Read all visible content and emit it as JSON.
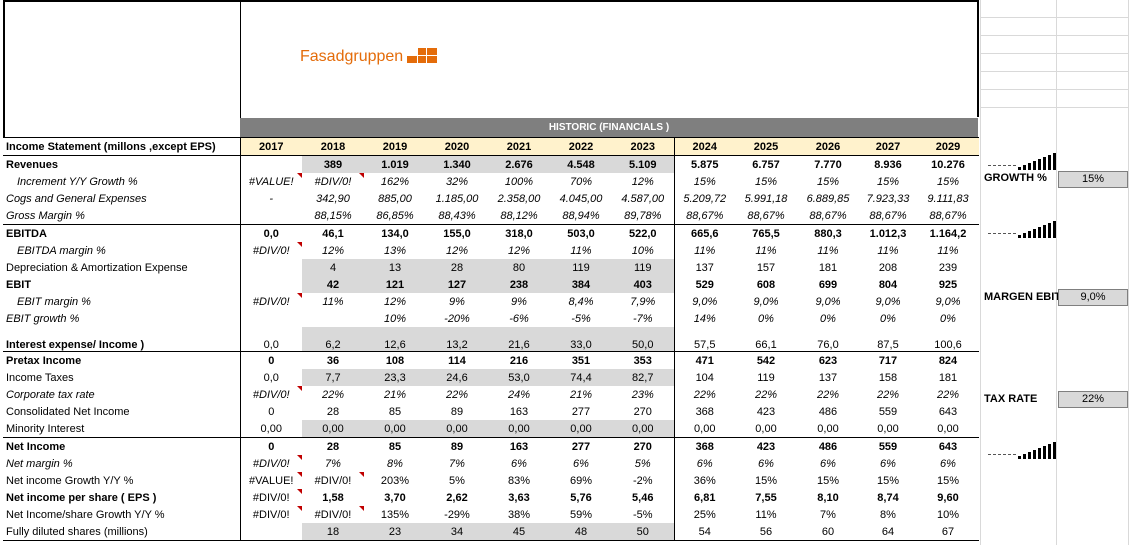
{
  "logo": {
    "text": "Fasadgruppen",
    "color": "#e46c0a"
  },
  "banner": {
    "label": "HISTORIC (FINANCIALS )"
  },
  "header": {
    "title": "Income Statement (millons ,except EPS)",
    "years": [
      "2017",
      "2018",
      "2019",
      "2020",
      "2021",
      "2022",
      "2023",
      "2024",
      "2025",
      "2026",
      "2027",
      "2029"
    ]
  },
  "rows": [
    {
      "label": "Revenues",
      "cells": [
        "",
        "389",
        "1.019",
        "1.340",
        "2.676",
        "4.548",
        "5.109",
        "5.875",
        "6.757",
        "7.770",
        "8.936",
        "10.276"
      ]
    },
    {
      "label": "Increment Y/Y Growth %",
      "cells": [
        "#VALUE!",
        "#DIV/0!",
        "162%",
        "32%",
        "100%",
        "70%",
        "12%",
        "15%",
        "15%",
        "15%",
        "15%",
        "15%"
      ]
    },
    {
      "label": "Cogs and General Expenses",
      "cells": [
        "-",
        "342,90",
        "885,00",
        "1.185,00",
        "2.358,00",
        "4.045,00",
        "4.587,00",
        "5.209,72",
        "5.991,18",
        "6.889,85",
        "7.923,33",
        "9.111,83"
      ]
    },
    {
      "label": "Gross Margin %",
      "cells": [
        "",
        "88,15%",
        "86,85%",
        "88,43%",
        "88,12%",
        "88,94%",
        "89,78%",
        "88,67%",
        "88,67%",
        "88,67%",
        "88,67%",
        "88,67%"
      ]
    },
    {
      "label": "EBITDA",
      "cells": [
        "0,0",
        "46,1",
        "134,0",
        "155,0",
        "318,0",
        "503,0",
        "522,0",
        "665,6",
        "765,5",
        "880,3",
        "1.012,3",
        "1.164,2"
      ]
    },
    {
      "label": "EBITDA margin %",
      "cells": [
        "#DIV/0!",
        "12%",
        "13%",
        "12%",
        "12%",
        "11%",
        "10%",
        "11%",
        "11%",
        "11%",
        "11%",
        "11%"
      ]
    },
    {
      "label": "Depreciation & Amortization Expense",
      "cells": [
        "",
        "4",
        "13",
        "28",
        "80",
        "119",
        "119",
        "137",
        "157",
        "181",
        "208",
        "239"
      ]
    },
    {
      "label": "EBIT",
      "cells": [
        "",
        "42",
        "121",
        "127",
        "238",
        "384",
        "403",
        "529",
        "608",
        "699",
        "804",
        "925"
      ]
    },
    {
      "label": "EBIT margin %",
      "cells": [
        "#DIV/0!",
        "11%",
        "12%",
        "9%",
        "9%",
        "8,4%",
        "7,9%",
        "9,0%",
        "9,0%",
        "9,0%",
        "9,0%",
        "9,0%"
      ]
    },
    {
      "label": "EBIT growth %",
      "cells": [
        "",
        "",
        "10%",
        "-20%",
        "-6%",
        "-5%",
        "-7%",
        "14%",
        "0%",
        "0%",
        "0%",
        "0%"
      ]
    },
    {
      "label": "Interest expense/ Income )",
      "cells": [
        "0,0",
        "6,2",
        "12,6",
        "13,2",
        "21,6",
        "33,0",
        "50,0",
        "57,5",
        "66,1",
        "76,0",
        "87,5",
        "100,6"
      ]
    },
    {
      "label": "Pretax Income",
      "cells": [
        "0",
        "36",
        "108",
        "114",
        "216",
        "351",
        "353",
        "471",
        "542",
        "623",
        "717",
        "824"
      ]
    },
    {
      "label": "Income Taxes",
      "cells": [
        "0,0",
        "7,7",
        "23,3",
        "24,6",
        "53,0",
        "74,4",
        "82,7",
        "104",
        "119",
        "137",
        "158",
        "181"
      ]
    },
    {
      "label": "Corporate tax rate",
      "cells": [
        "#DIV/0!",
        "22%",
        "21%",
        "22%",
        "24%",
        "21%",
        "23%",
        "22%",
        "22%",
        "22%",
        "22%",
        "22%"
      ]
    },
    {
      "label": "Consolidated Net Income",
      "cells": [
        "0",
        "28",
        "85",
        "89",
        "163",
        "277",
        "270",
        "368",
        "423",
        "486",
        "559",
        "643"
      ]
    },
    {
      "label": "Minority Interest",
      "cells": [
        "0,00",
        "0,00",
        "0,00",
        "0,00",
        "0,00",
        "0,00",
        "0,00",
        "0,00",
        "0,00",
        "0,00",
        "0,00",
        "0,00"
      ]
    },
    {
      "label": "Net Income",
      "cells": [
        "0",
        "28",
        "85",
        "89",
        "163",
        "277",
        "270",
        "368",
        "423",
        "486",
        "559",
        "643"
      ]
    },
    {
      "label": "Net margin %",
      "cells": [
        "#DIV/0!",
        "7%",
        "8%",
        "7%",
        "6%",
        "6%",
        "5%",
        "6%",
        "6%",
        "6%",
        "6%",
        "6%"
      ]
    },
    {
      "label": "Net income  Growth Y/Y %",
      "cells": [
        "#VALUE!",
        "#DIV/0!",
        "203%",
        "5%",
        "83%",
        "69%",
        "-2%",
        "36%",
        "15%",
        "15%",
        "15%",
        "15%"
      ]
    },
    {
      "label": "Net income per share ( EPS )",
      "cells": [
        "#DIV/0!",
        "1,58",
        "3,70",
        "2,62",
        "3,63",
        "5,76",
        "5,46",
        "6,81",
        "7,55",
        "8,10",
        "8,74",
        "9,60"
      ]
    },
    {
      "label": "Net Income/share Growth Y/Y %",
      "cells": [
        "#DIV/0!",
        "#DIV/0!",
        "135%",
        "-29%",
        "38%",
        "59%",
        "-5%",
        "25%",
        "11%",
        "7%",
        "8%",
        "10%"
      ]
    },
    {
      "label": "Fully diluted shares  (millions)",
      "cells": [
        "",
        "18",
        "23",
        "34",
        "45",
        "48",
        "50",
        "54",
        "56",
        "60",
        "64",
        "67"
      ]
    }
  ],
  "side": {
    "growth_label": "GROWTH %",
    "growth_value": "15%",
    "margin_label": "MARGEN EBIT",
    "margin_value": "9,0%",
    "tax_label": "TAX RATE",
    "tax_value": "22%"
  }
}
